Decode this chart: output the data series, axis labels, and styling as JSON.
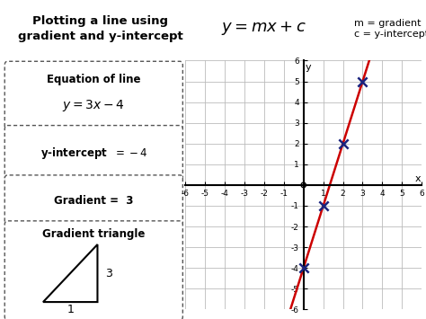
{
  "title_left": "Plotting a line using\ngradient and y-intercept",
  "title_right_formula": "$y = mx + c$",
  "title_right_note": "m = gradient\nc = y-intercept",
  "slope": 3,
  "intercept": -4,
  "x_range": [
    -6,
    6
  ],
  "y_range": [
    -6,
    6
  ],
  "line_color": "#cc0000",
  "point_color": "#1a237e",
  "grid_color": "#bbbbbb",
  "bg_left": "#cccccc",
  "bg_right": "#7de8b8",
  "points_x": [
    0,
    1,
    2,
    3
  ],
  "points_y": [
    -4,
    -1,
    2,
    5
  ],
  "fig_width": 4.74,
  "fig_height": 3.55,
  "dpi": 100
}
